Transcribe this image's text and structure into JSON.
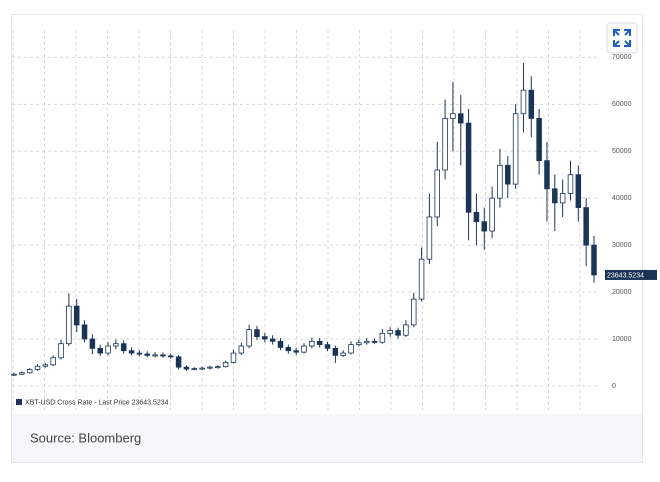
{
  "chart_data": {
    "type": "candlestick",
    "source": "Source: Bloomberg",
    "last_price": 23643.5234,
    "ylim": [
      -3000,
      72000
    ],
    "yticks": [
      0,
      10000,
      20000,
      30000,
      40000,
      50000,
      60000,
      70000
    ],
    "grid": true,
    "series": [
      {
        "name": "XBT-USD Cross Rate - Last Price 23643.5234",
        "color": "#1c3557",
        "open": [
          2300,
          2500,
          2800,
          3500,
          4200,
          4500,
          6000,
          9000,
          17000,
          13000,
          10000,
          8000,
          7000,
          8500,
          9000,
          7500,
          7000,
          6800,
          6500,
          6600,
          6400,
          6200,
          4000,
          3600,
          3700,
          3800,
          4000,
          4100,
          5000,
          7000,
          8500,
          12000,
          10500,
          10000,
          9500,
          8200,
          7500,
          7200,
          8500,
          9500,
          8800,
          8000,
          6500,
          7000,
          8800,
          9200,
          9500,
          9300,
          11200,
          11800,
          10800,
          13000,
          18500,
          27000,
          36000,
          46000,
          57000,
          58000,
          56000,
          37000,
          35000,
          33000,
          40000,
          47000,
          43000,
          58000,
          63000,
          57000,
          48000,
          42000,
          39000,
          41000,
          45000,
          38000,
          30000
        ],
        "high": [
          2800,
          3100,
          3800,
          4600,
          4900,
          6500,
          9800,
          19700,
          18500,
          14000,
          11000,
          8800,
          9300,
          9900,
          9700,
          8200,
          7600,
          7400,
          7200,
          7100,
          6900,
          6600,
          4400,
          4000,
          4100,
          4300,
          4400,
          5400,
          7700,
          9200,
          13000,
          12800,
          11300,
          10800,
          10200,
          8800,
          8100,
          9100,
          10300,
          10200,
          9400,
          8600,
          7600,
          9500,
          9900,
          10200,
          10100,
          12100,
          12500,
          12400,
          14000,
          19800,
          29500,
          41000,
          52000,
          61000,
          64800,
          62000,
          59000,
          41000,
          38000,
          42500,
          50500,
          49000,
          60000,
          68800,
          66000,
          59000,
          52000,
          45000,
          44000,
          48000,
          47000,
          40000,
          32000
        ],
        "low": [
          2100,
          2300,
          2600,
          3200,
          3900,
          4200,
          5600,
          8500,
          11500,
          9300,
          6800,
          6400,
          6500,
          7800,
          6900,
          6500,
          6300,
          6100,
          6100,
          6000,
          5800,
          3500,
          3200,
          3300,
          3400,
          3500,
          3700,
          3900,
          4800,
          6600,
          8000,
          9800,
          9300,
          8800,
          7600,
          6900,
          6600,
          6900,
          8000,
          8200,
          7400,
          4900,
          6200,
          6700,
          8400,
          8800,
          8900,
          9000,
          10500,
          10100,
          10400,
          12500,
          18000,
          26000,
          34000,
          44000,
          50000,
          47000,
          31000,
          30000,
          29000,
          31500,
          38000,
          40000,
          42000,
          54000,
          53000,
          45000,
          35000,
          33000,
          36000,
          39500,
          35000,
          25500,
          22000
        ],
        "close": [
          2500,
          2800,
          3500,
          4200,
          4500,
          6000,
          9000,
          17000,
          13000,
          10000,
          8000,
          7000,
          8500,
          9000,
          7500,
          7000,
          6800,
          6500,
          6600,
          6400,
          6200,
          4000,
          3600,
          3700,
          3800,
          4000,
          4100,
          5000,
          7000,
          8500,
          12000,
          10500,
          10000,
          9500,
          8200,
          7500,
          7200,
          8500,
          9500,
          8800,
          8000,
          6500,
          7000,
          8800,
          9200,
          9500,
          9300,
          11200,
          11800,
          10800,
          13000,
          18500,
          27000,
          36000,
          46000,
          57000,
          58000,
          56000,
          37000,
          35000,
          33000,
          40000,
          47000,
          43000,
          58000,
          63000,
          57000,
          48000,
          42000,
          39000,
          41000,
          45000,
          38000,
          30000,
          23643.5234
        ]
      }
    ]
  }
}
